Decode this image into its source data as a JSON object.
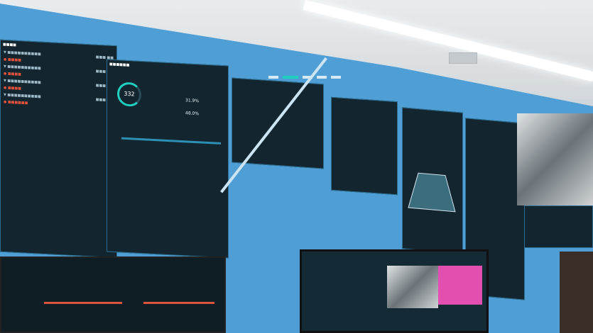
{
  "video_wall": {
    "alarm_panel": {
      "items": 8
    },
    "overview_panel": {
      "gauge_value": "332",
      "stat_1": "31.9%",
      "stat_2": "48.0%"
    },
    "colors": {
      "wall": "#4f9fd6",
      "panel": "#13262f",
      "accent": "#1fcfc0",
      "alert": "#e0533a",
      "highlight": "#e24fb0"
    }
  }
}
